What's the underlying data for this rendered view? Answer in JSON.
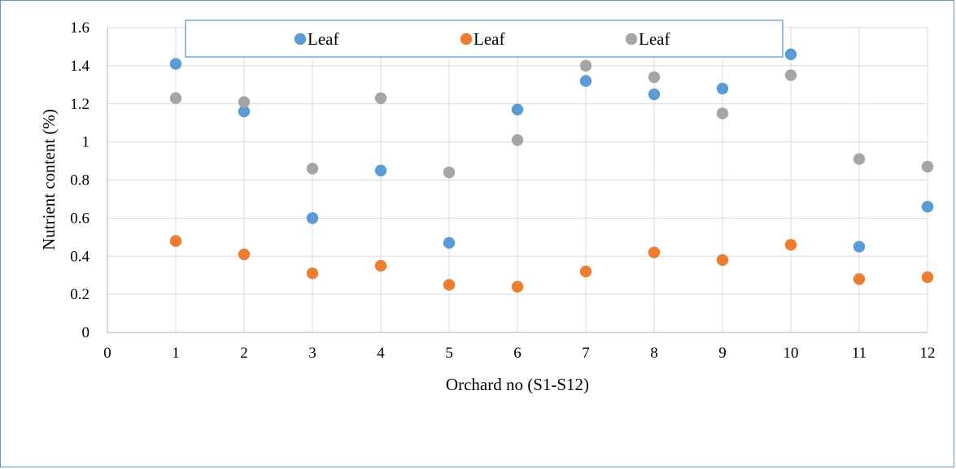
{
  "chart_data": {
    "type": "scatter",
    "title": "",
    "xlabel": "Orchard no (S1-S12)",
    "ylabel": "Nutrient content (%)",
    "xlim": [
      0,
      12
    ],
    "ylim": [
      0,
      1.6
    ],
    "x_ticks": [
      "0",
      "1",
      "2",
      "3",
      "4",
      "5",
      "6",
      "7",
      "8",
      "9",
      "10",
      "11",
      "12"
    ],
    "y_ticks": [
      "0",
      "0.2",
      "0.4",
      "0.6",
      "0.8",
      "1",
      "1.2",
      "1.4",
      "1.6"
    ],
    "grid": "vertical and horizontal major gridlines",
    "legend_position": "top",
    "series": [
      {
        "name": "Leaf",
        "color": "#5b9bd5",
        "x": [
          1,
          2,
          3,
          4,
          5,
          6,
          7,
          8,
          9,
          10,
          11,
          12
        ],
        "y": [
          1.41,
          1.16,
          0.6,
          0.85,
          0.47,
          1.17,
          1.32,
          1.25,
          1.28,
          1.46,
          0.45,
          0.66
        ]
      },
      {
        "name": "Leaf",
        "color": "#ed7d31",
        "x": [
          1,
          2,
          3,
          4,
          5,
          6,
          7,
          8,
          9,
          10,
          11,
          12
        ],
        "y": [
          0.48,
          0.41,
          0.31,
          0.35,
          0.25,
          0.24,
          0.32,
          0.42,
          0.38,
          0.46,
          0.28,
          0.29
        ]
      },
      {
        "name": "Leaf",
        "color": "#a5a5a5",
        "x": [
          1,
          2,
          3,
          4,
          5,
          6,
          7,
          8,
          9,
          10,
          11,
          12
        ],
        "y": [
          1.23,
          1.21,
          0.86,
          1.23,
          0.84,
          1.01,
          1.4,
          1.34,
          1.15,
          1.35,
          0.91,
          0.87
        ]
      }
    ]
  }
}
